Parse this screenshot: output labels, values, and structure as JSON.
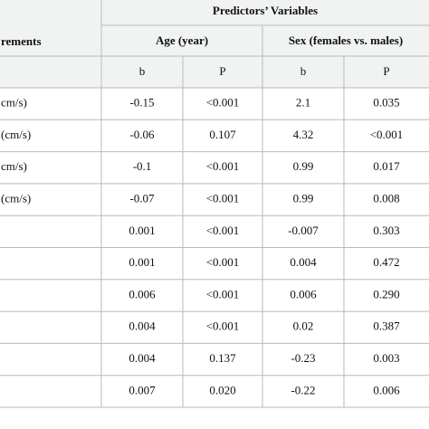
{
  "header": {
    "group_title": "Predictors’ Variables",
    "row_label": "rements",
    "subgroups": [
      "Age (year)",
      "Sex (females vs. males)"
    ],
    "stats": [
      "b",
      "P",
      "b",
      "P"
    ]
  },
  "table": {
    "rows": [
      {
        "label": "cm/s)",
        "cells": [
          "-0.15",
          "<0.001",
          "2.1",
          "0.035"
        ]
      },
      {
        "label": "(cm/s)",
        "cells": [
          "-0.06",
          "0.107",
          "4.32",
          "<0.001"
        ]
      },
      {
        "label": "cm/s)",
        "cells": [
          "-0.1",
          "<0.001",
          "0.99",
          "0.017"
        ]
      },
      {
        "label": "(cm/s)",
        "cells": [
          "-0.07",
          "<0.001",
          "0.99",
          "0.008"
        ]
      },
      {
        "cells": [
          "0.001",
          "<0.001",
          "-0.007",
          "0.303"
        ]
      },
      {
        "cells": [
          "0.001",
          "<0.001",
          "0.004",
          "0.472"
        ]
      },
      {
        "cells": [
          "0.006",
          "<0.001",
          "0.006",
          "0.290"
        ]
      },
      {
        "cells": [
          "0.004",
          "<0.001",
          "0.02",
          "0.387"
        ]
      },
      {
        "cells": [
          "0.004",
          "0.137",
          "-0.23",
          "0.003"
        ]
      },
      {
        "cells": [
          "0.007",
          "0.020",
          "-0.22",
          "0.006"
        ]
      }
    ]
  }
}
